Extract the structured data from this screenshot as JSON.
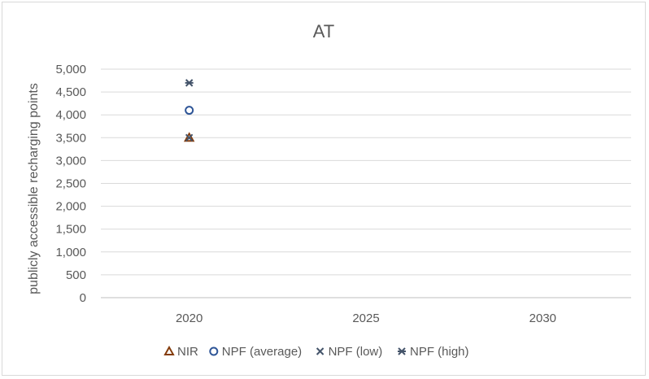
{
  "chart_data": {
    "type": "scatter",
    "title": "AT",
    "xlabel": "",
    "ylabel": "publicly accessible recharging points",
    "x_ticks": [
      "2020",
      "2025",
      "2030"
    ],
    "y_ticks": [
      "0",
      "500",
      "1,000",
      "1,500",
      "2,000",
      "2,500",
      "3,000",
      "3,500",
      "4,000",
      "4,500",
      "5,000"
    ],
    "ylim": [
      0,
      5000
    ],
    "grid": true,
    "legend_position": "bottom",
    "series": [
      {
        "name": "NIR",
        "marker": "triangle",
        "color": "#843c0c",
        "points": [
          {
            "x": "2020",
            "y": 3500
          }
        ]
      },
      {
        "name": "NPF (average)",
        "marker": "circle",
        "color": "#2e5597",
        "points": [
          {
            "x": "2020",
            "y": 4100
          }
        ]
      },
      {
        "name": "NPF (low)",
        "marker": "x",
        "color": "#44546a",
        "points": [
          {
            "x": "2020",
            "y": 3500
          }
        ]
      },
      {
        "name": "NPF (high)",
        "marker": "star",
        "color": "#44546a",
        "points": [
          {
            "x": "2020",
            "y": 4700
          }
        ]
      }
    ]
  }
}
